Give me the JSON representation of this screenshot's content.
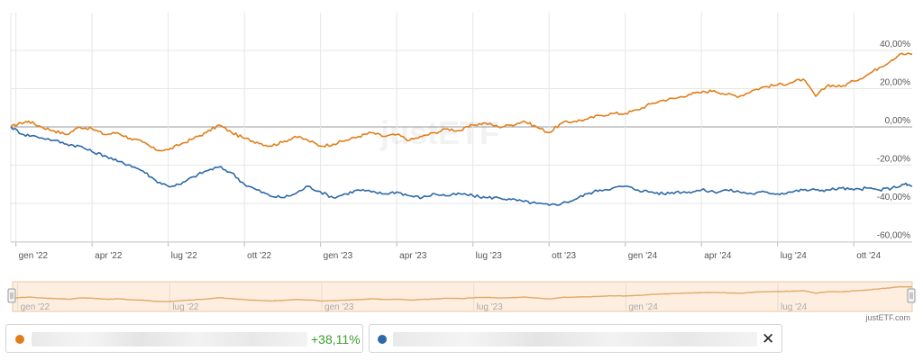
{
  "chart_data": {
    "type": "line",
    "watermark": "justETF",
    "credit": "justETF.com",
    "ylim": [
      -60,
      40
    ],
    "y_ticks": [
      40,
      20,
      0,
      -20,
      -40,
      -60
    ],
    "y_tick_labels": [
      "40,00%",
      "20,00%",
      "0,00%",
      "-20,00%",
      "-40,00%",
      "-60,00%"
    ],
    "x_ticks": [
      {
        "label": "gen '22",
        "t": 0.0
      },
      {
        "label": "apr '22",
        "t": 3.0
      },
      {
        "label": "lug '22",
        "t": 6.0
      },
      {
        "label": "ott '22",
        "t": 9.0
      },
      {
        "label": "gen '23",
        "t": 12.0
      },
      {
        "label": "apr '23",
        "t": 15.0
      },
      {
        "label": "lug '23",
        "t": 18.0
      },
      {
        "label": "ott '23",
        "t": 21.0
      },
      {
        "label": "gen '24",
        "t": 24.0
      },
      {
        "label": "apr '24",
        "t": 27.0
      },
      {
        "label": "lug '24",
        "t": 30.0
      },
      {
        "label": "ott '24",
        "t": 33.0
      }
    ],
    "navigator_ticks": [
      {
        "label": "gen '22",
        "t": 0.0
      },
      {
        "label": "lug '22",
        "t": 6.0
      },
      {
        "label": "gen '23",
        "t": 12.0
      },
      {
        "label": "lug '23",
        "t": 18.0
      },
      {
        "label": "gen '24",
        "t": 24.0
      },
      {
        "label": "lug '24",
        "t": 30.0
      }
    ],
    "x_range_months": [
      -0.2,
      35.3
    ],
    "series": [
      {
        "color": "#e07f1a",
        "return_label": "+38,11%",
        "points": [
          [
            -0.2,
            0
          ],
          [
            0.2,
            2
          ],
          [
            0.5,
            3
          ],
          [
            1.0,
            0
          ],
          [
            1.5,
            -2
          ],
          [
            2.0,
            -4
          ],
          [
            2.5,
            0
          ],
          [
            3.0,
            -1
          ],
          [
            3.5,
            -4
          ],
          [
            4.0,
            -3
          ],
          [
            4.5,
            -6
          ],
          [
            5.0,
            -8
          ],
          [
            5.5,
            -12
          ],
          [
            6.0,
            -12
          ],
          [
            6.5,
            -9
          ],
          [
            7.0,
            -6
          ],
          [
            7.5,
            -3
          ],
          [
            8.0,
            1
          ],
          [
            8.5,
            -3
          ],
          [
            9.0,
            -6
          ],
          [
            9.5,
            -8
          ],
          [
            10.0,
            -10
          ],
          [
            10.5,
            -8
          ],
          [
            11.0,
            -5
          ],
          [
            11.5,
            -7
          ],
          [
            12.0,
            -10
          ],
          [
            12.5,
            -9
          ],
          [
            13.0,
            -7
          ],
          [
            13.5,
            -5
          ],
          [
            14.0,
            -3
          ],
          [
            14.5,
            -5
          ],
          [
            15.0,
            -4
          ],
          [
            15.5,
            -7
          ],
          [
            16.0,
            -5
          ],
          [
            16.5,
            -3
          ],
          [
            17.0,
            -1
          ],
          [
            17.5,
            -2
          ],
          [
            18.0,
            1
          ],
          [
            18.5,
            2
          ],
          [
            19.0,
            0
          ],
          [
            19.5,
            1
          ],
          [
            20.0,
            3
          ],
          [
            20.5,
            0
          ],
          [
            21.0,
            -3
          ],
          [
            21.5,
            2
          ],
          [
            22.0,
            3
          ],
          [
            22.5,
            4
          ],
          [
            23.0,
            6
          ],
          [
            23.5,
            7
          ],
          [
            24.0,
            7
          ],
          [
            24.5,
            9
          ],
          [
            25.0,
            12
          ],
          [
            25.5,
            14
          ],
          [
            26.0,
            15
          ],
          [
            26.5,
            17
          ],
          [
            27.0,
            18
          ],
          [
            27.5,
            19
          ],
          [
            28.0,
            17
          ],
          [
            28.5,
            16
          ],
          [
            29.0,
            19
          ],
          [
            29.5,
            21
          ],
          [
            30.0,
            22
          ],
          [
            30.5,
            23
          ],
          [
            31.0,
            25
          ],
          [
            31.5,
            16
          ],
          [
            32.0,
            22
          ],
          [
            32.5,
            21
          ],
          [
            33.0,
            24
          ],
          [
            33.5,
            27
          ],
          [
            34.0,
            31
          ],
          [
            34.5,
            35
          ],
          [
            34.8,
            38
          ],
          [
            35.3,
            38
          ]
        ]
      },
      {
        "color": "#2e69a8",
        "points": [
          [
            -0.2,
            0
          ],
          [
            0.3,
            -4
          ],
          [
            0.8,
            -5
          ],
          [
            1.5,
            -7
          ],
          [
            2.0,
            -9
          ],
          [
            2.5,
            -10
          ],
          [
            3.0,
            -13
          ],
          [
            3.5,
            -15
          ],
          [
            4.0,
            -18
          ],
          [
            4.5,
            -20
          ],
          [
            5.0,
            -23
          ],
          [
            5.5,
            -28
          ],
          [
            6.0,
            -31
          ],
          [
            6.5,
            -30
          ],
          [
            7.0,
            -26
          ],
          [
            7.5,
            -23
          ],
          [
            8.0,
            -21
          ],
          [
            8.5,
            -24
          ],
          [
            9.0,
            -30
          ],
          [
            9.5,
            -33
          ],
          [
            10.0,
            -36
          ],
          [
            10.5,
            -37
          ],
          [
            11.0,
            -35
          ],
          [
            11.5,
            -31
          ],
          [
            12.0,
            -34
          ],
          [
            12.5,
            -37
          ],
          [
            13.0,
            -35
          ],
          [
            13.5,
            -33
          ],
          [
            14.0,
            -34
          ],
          [
            14.5,
            -35
          ],
          [
            15.0,
            -34
          ],
          [
            15.5,
            -36
          ],
          [
            16.0,
            -37
          ],
          [
            16.5,
            -35
          ],
          [
            17.0,
            -36
          ],
          [
            17.5,
            -35
          ],
          [
            18.0,
            -36
          ],
          [
            18.5,
            -37
          ],
          [
            19.0,
            -37
          ],
          [
            19.5,
            -38
          ],
          [
            20.0,
            -39
          ],
          [
            20.5,
            -40
          ],
          [
            21.0,
            -41
          ],
          [
            21.5,
            -40
          ],
          [
            22.0,
            -38
          ],
          [
            22.5,
            -35
          ],
          [
            23.0,
            -33
          ],
          [
            23.5,
            -32
          ],
          [
            24.0,
            -31
          ],
          [
            24.5,
            -33
          ],
          [
            25.0,
            -34
          ],
          [
            25.5,
            -35
          ],
          [
            26.0,
            -34
          ],
          [
            26.5,
            -34
          ],
          [
            27.0,
            -33
          ],
          [
            27.5,
            -34
          ],
          [
            28.0,
            -33
          ],
          [
            28.5,
            -34
          ],
          [
            29.0,
            -35
          ],
          [
            29.5,
            -34
          ],
          [
            30.0,
            -35
          ],
          [
            30.5,
            -34
          ],
          [
            31.0,
            -33
          ],
          [
            31.5,
            -33
          ],
          [
            32.0,
            -33
          ],
          [
            32.5,
            -32
          ],
          [
            33.0,
            -33
          ],
          [
            33.5,
            -32
          ],
          [
            34.0,
            -33
          ],
          [
            34.5,
            -32
          ],
          [
            35.0,
            -30
          ],
          [
            35.3,
            -31
          ]
        ]
      }
    ]
  },
  "legend": {
    "series1_return": "+38,11%",
    "close_symbol": "✕"
  },
  "colors": {
    "orange": "#e07f1a",
    "blue": "#2e69a8",
    "grid": "#e6e6e6",
    "navigator_fill": "#fdeee0",
    "positive": "#3c9e2e"
  }
}
